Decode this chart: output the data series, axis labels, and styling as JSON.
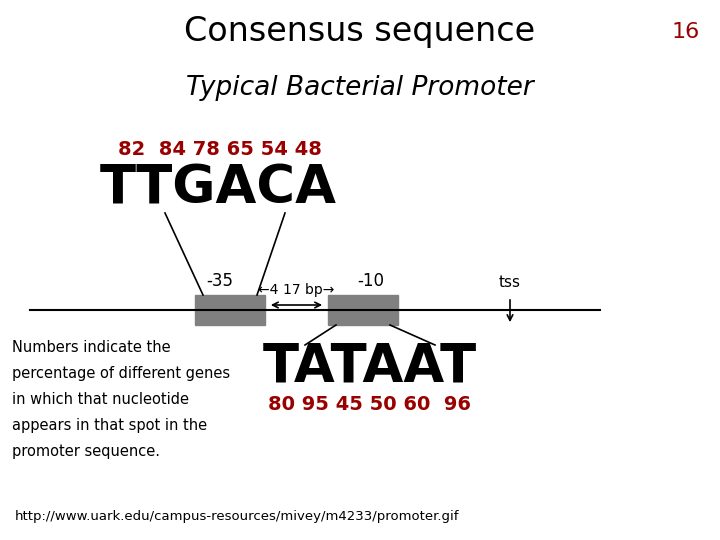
{
  "title": "Consensus sequence",
  "slide_number": "16",
  "subtitle": "Typical Bacterial Promoter",
  "ttgaca_text": "TTGACA",
  "tataat_text": "TATAAT",
  "ttgaca_numbers": "82  84 78 65 54 48",
  "tataat_numbers": "80 95 45 50 60  96",
  "label_35": "-35",
  "label_10": "-10",
  "label_17bp": "←4 17 bp→",
  "label_tss": "tss",
  "footnote": "http://www.uark.edu/campus-resources/mivey/m4233/promoter.gif",
  "box_color": "#808080",
  "line_color": "#000000",
  "text_color": "#000000",
  "red_color": "#990000",
  "bg_color": "#ffffff",
  "numbers_description": [
    "Numbers indicate the",
    "percentage of different genes",
    "in which that nucleotide",
    "appears in that spot in the",
    "promoter sequence."
  ]
}
